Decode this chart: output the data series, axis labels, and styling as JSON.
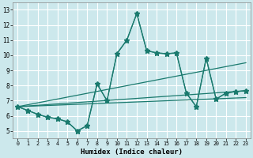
{
  "xlabel": "Humidex (Indice chaleur)",
  "bg_color": "#cce8ec",
  "line_color": "#1a7a6e",
  "grid_color": "#ffffff",
  "xlim": [
    -0.5,
    23.5
  ],
  "ylim": [
    4.5,
    13.5
  ],
  "xticks": [
    0,
    1,
    2,
    3,
    4,
    5,
    6,
    7,
    8,
    9,
    10,
    11,
    12,
    13,
    14,
    15,
    16,
    17,
    18,
    19,
    20,
    21,
    22,
    23
  ],
  "yticks": [
    5,
    6,
    7,
    8,
    9,
    10,
    11,
    12,
    13
  ],
  "lines": [
    {
      "x": [
        0,
        1,
        2,
        3,
        4,
        5,
        6,
        7,
        8,
        9,
        10,
        11,
        12,
        13,
        14,
        15,
        16,
        17,
        18,
        19,
        20,
        21,
        22,
        23
      ],
      "y": [
        6.6,
        6.35,
        6.1,
        5.9,
        5.8,
        5.6,
        5.0,
        5.35,
        8.1,
        7.0,
        10.1,
        11.0,
        12.75,
        10.3,
        10.15,
        10.1,
        10.15,
        7.5,
        6.6,
        9.8,
        7.1,
        7.5,
        7.6,
        7.65
      ],
      "marker": "D",
      "markersize": 2.5,
      "lw": 0.9
    },
    {
      "x": [
        0,
        1,
        2,
        3,
        4,
        5,
        6,
        7,
        8,
        9,
        10,
        11,
        12,
        13,
        14,
        15,
        16,
        17,
        18,
        19,
        20,
        21,
        22,
        23
      ],
      "y": [
        6.6,
        6.35,
        6.1,
        5.9,
        5.8,
        5.6,
        5.0,
        5.35,
        8.1,
        7.0,
        10.1,
        11.0,
        12.75,
        10.3,
        10.15,
        10.1,
        10.15,
        7.5,
        6.6,
        9.8,
        7.1,
        7.5,
        7.6,
        7.65
      ],
      "marker": "*",
      "markersize": 4.5,
      "lw": 0.9
    },
    {
      "x": [
        0,
        23
      ],
      "y": [
        6.6,
        9.5
      ],
      "marker": null,
      "markersize": 0,
      "lw": 0.9
    },
    {
      "x": [
        0,
        23
      ],
      "y": [
        6.6,
        7.65
      ],
      "marker": null,
      "markersize": 0,
      "lw": 0.9
    },
    {
      "x": [
        0,
        23
      ],
      "y": [
        6.6,
        7.2
      ],
      "marker": null,
      "markersize": 0,
      "lw": 0.9
    }
  ]
}
